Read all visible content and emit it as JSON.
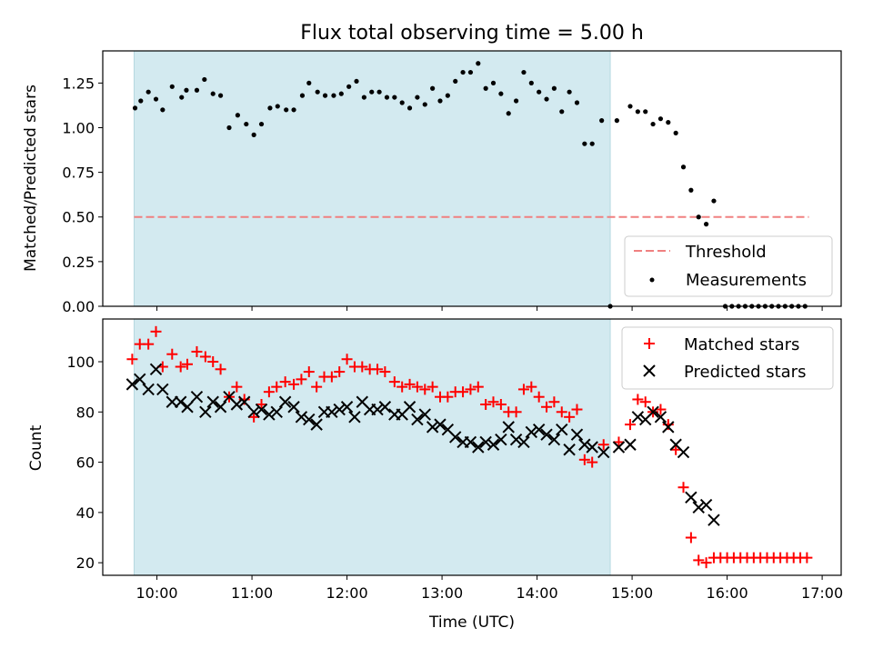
{
  "chart_data": [
    {
      "type": "scatter",
      "title": "Flux total observing time = 5.00 h",
      "xlabel": "",
      "ylabel": "Matched/Predicted stars",
      "ylim": [
        0,
        1.43
      ],
      "xlim": [
        9.43,
        17.2
      ],
      "grid": false,
      "legend_position": "lower right",
      "shaded_interval": {
        "x": [
          9.76,
          14.77
        ],
        "color": "#d3eaf0"
      },
      "yticks": [
        {
          "value": 0.0,
          "label": "0.00"
        },
        {
          "value": 0.25,
          "label": "0.25"
        },
        {
          "value": 0.5,
          "label": "0.50"
        },
        {
          "value": 0.75,
          "label": "0.75"
        },
        {
          "value": 1.0,
          "label": "1.00"
        },
        {
          "value": 1.25,
          "label": "1.25"
        }
      ],
      "threshold": {
        "name": "Threshold",
        "value": 0.5,
        "x": [
          9.76,
          16.86
        ],
        "color": "#f08080",
        "style": "dashed"
      },
      "series": [
        {
          "name": "Measurements",
          "color": "#000000",
          "marker": "dot",
          "points": [
            [
              9.77,
              1.11
            ],
            [
              9.83,
              1.15
            ],
            [
              9.91,
              1.2
            ],
            [
              9.99,
              1.16
            ],
            [
              10.06,
              1.1
            ],
            [
              10.16,
              1.23
            ],
            [
              10.26,
              1.17
            ],
            [
              10.31,
              1.21
            ],
            [
              10.42,
              1.21
            ],
            [
              10.5,
              1.27
            ],
            [
              10.59,
              1.19
            ],
            [
              10.67,
              1.18
            ],
            [
              10.76,
              1.0
            ],
            [
              10.85,
              1.07
            ],
            [
              10.94,
              1.02
            ],
            [
              11.02,
              0.96
            ],
            [
              11.1,
              1.02
            ],
            [
              11.19,
              1.11
            ],
            [
              11.27,
              1.12
            ],
            [
              11.36,
              1.1
            ],
            [
              11.44,
              1.1
            ],
            [
              11.53,
              1.18
            ],
            [
              11.6,
              1.25
            ],
            [
              11.69,
              1.2
            ],
            [
              11.77,
              1.18
            ],
            [
              11.86,
              1.18
            ],
            [
              11.94,
              1.19
            ],
            [
              12.02,
              1.23
            ],
            [
              12.1,
              1.26
            ],
            [
              12.18,
              1.17
            ],
            [
              12.26,
              1.2
            ],
            [
              12.34,
              1.2
            ],
            [
              12.42,
              1.17
            ],
            [
              12.5,
              1.17
            ],
            [
              12.58,
              1.14
            ],
            [
              12.66,
              1.11
            ],
            [
              12.74,
              1.17
            ],
            [
              12.82,
              1.13
            ],
            [
              12.9,
              1.22
            ],
            [
              12.98,
              1.15
            ],
            [
              13.06,
              1.18
            ],
            [
              13.14,
              1.26
            ],
            [
              13.22,
              1.31
            ],
            [
              13.3,
              1.31
            ],
            [
              13.38,
              1.36
            ],
            [
              13.46,
              1.22
            ],
            [
              13.54,
              1.25
            ],
            [
              13.62,
              1.19
            ],
            [
              13.7,
              1.08
            ],
            [
              13.78,
              1.15
            ],
            [
              13.86,
              1.31
            ],
            [
              13.94,
              1.25
            ],
            [
              14.02,
              1.2
            ],
            [
              14.1,
              1.16
            ],
            [
              14.18,
              1.22
            ],
            [
              14.26,
              1.09
            ],
            [
              14.34,
              1.2
            ],
            [
              14.42,
              1.14
            ],
            [
              14.5,
              0.91
            ],
            [
              14.58,
              0.91
            ],
            [
              14.68,
              1.04
            ],
            [
              14.84,
              1.04
            ],
            [
              14.98,
              1.12
            ],
            [
              15.06,
              1.09
            ],
            [
              15.14,
              1.09
            ],
            [
              15.22,
              1.02
            ],
            [
              15.3,
              1.05
            ],
            [
              15.38,
              1.03
            ],
            [
              15.46,
              0.97
            ],
            [
              15.54,
              0.78
            ],
            [
              15.62,
              0.65
            ],
            [
              15.7,
              0.5
            ],
            [
              15.78,
              0.46
            ],
            [
              15.86,
              0.59
            ],
            [
              14.77,
              0.0
            ],
            [
              15.98,
              0.0
            ],
            [
              16.05,
              0.0
            ],
            [
              16.12,
              0.0
            ],
            [
              16.19,
              0.0
            ],
            [
              16.26,
              0.0
            ],
            [
              16.33,
              0.0
            ],
            [
              16.4,
              0.0
            ],
            [
              16.47,
              0.0
            ],
            [
              16.54,
              0.0
            ],
            [
              16.61,
              0.0
            ],
            [
              16.68,
              0.0
            ],
            [
              16.75,
              0.0
            ],
            [
              16.82,
              0.0
            ]
          ]
        }
      ]
    },
    {
      "type": "scatter",
      "title": "",
      "xlabel": "Time (UTC)",
      "ylabel": "Count",
      "ylim": [
        15,
        117
      ],
      "xlim": [
        9.43,
        17.2
      ],
      "grid": false,
      "legend_position": "upper right",
      "shaded_interval": {
        "x": [
          9.76,
          14.77
        ],
        "color": "#d3eaf0"
      },
      "yticks": [
        {
          "value": 20,
          "label": "20"
        },
        {
          "value": 40,
          "label": "40"
        },
        {
          "value": 60,
          "label": "60"
        },
        {
          "value": 80,
          "label": "80"
        },
        {
          "value": 100,
          "label": "100"
        }
      ],
      "xticks": [
        {
          "value": 10,
          "label": "10:00"
        },
        {
          "value": 11,
          "label": "11:00"
        },
        {
          "value": 12,
          "label": "12:00"
        },
        {
          "value": 13,
          "label": "13:00"
        },
        {
          "value": 14,
          "label": "14:00"
        },
        {
          "value": 15,
          "label": "15:00"
        },
        {
          "value": 16,
          "label": "16:00"
        },
        {
          "value": 17,
          "label": "17:00"
        }
      ],
      "series": [
        {
          "name": "Matched stars",
          "color": "#ff0000",
          "marker": "plus",
          "points": [
            [
              9.74,
              101
            ],
            [
              9.82,
              107
            ],
            [
              9.91,
              107
            ],
            [
              9.99,
              112
            ],
            [
              10.06,
              98
            ],
            [
              10.16,
              103
            ],
            [
              10.25,
              98
            ],
            [
              10.32,
              99
            ],
            [
              10.42,
              104
            ],
            [
              10.51,
              102
            ],
            [
              10.59,
              100
            ],
            [
              10.67,
              97
            ],
            [
              10.76,
              86
            ],
            [
              10.84,
              90
            ],
            [
              10.92,
              85
            ],
            [
              11.02,
              78
            ],
            [
              11.1,
              83
            ],
            [
              11.18,
              88
            ],
            [
              11.26,
              90
            ],
            [
              11.35,
              92
            ],
            [
              11.44,
              91
            ],
            [
              11.52,
              93
            ],
            [
              11.6,
              96
            ],
            [
              11.68,
              90
            ],
            [
              11.76,
              94
            ],
            [
              11.84,
              94
            ],
            [
              11.92,
              96
            ],
            [
              12.0,
              101
            ],
            [
              12.08,
              98
            ],
            [
              12.16,
              98
            ],
            [
              12.24,
              97
            ],
            [
              12.32,
              97
            ],
            [
              12.4,
              96
            ],
            [
              12.5,
              92
            ],
            [
              12.58,
              90
            ],
            [
              12.66,
              91
            ],
            [
              12.74,
              90
            ],
            [
              12.82,
              89
            ],
            [
              12.9,
              90
            ],
            [
              12.98,
              86
            ],
            [
              13.06,
              86
            ],
            [
              13.14,
              88
            ],
            [
              13.22,
              88
            ],
            [
              13.3,
              89
            ],
            [
              13.38,
              90
            ],
            [
              13.46,
              83
            ],
            [
              13.54,
              84
            ],
            [
              13.62,
              83
            ],
            [
              13.7,
              80
            ],
            [
              13.78,
              80
            ],
            [
              13.86,
              89
            ],
            [
              13.94,
              90
            ],
            [
              14.02,
              86
            ],
            [
              14.1,
              82
            ],
            [
              14.18,
              84
            ],
            [
              14.26,
              80
            ],
            [
              14.34,
              78
            ],
            [
              14.42,
              81
            ],
            [
              14.5,
              61
            ],
            [
              14.58,
              60
            ],
            [
              14.7,
              67
            ],
            [
              14.86,
              68
            ],
            [
              14.98,
              75
            ],
            [
              15.06,
              85
            ],
            [
              15.14,
              84
            ],
            [
              15.22,
              80
            ],
            [
              15.3,
              81
            ],
            [
              15.38,
              75
            ],
            [
              15.46,
              65
            ],
            [
              15.54,
              50
            ],
            [
              15.62,
              30
            ],
            [
              15.7,
              21
            ],
            [
              15.78,
              20
            ],
            [
              15.86,
              22
            ],
            [
              15.93,
              22
            ],
            [
              16.0,
              22
            ],
            [
              16.07,
              22
            ],
            [
              16.14,
              22
            ],
            [
              16.21,
              22
            ],
            [
              16.28,
              22
            ],
            [
              16.35,
              22
            ],
            [
              16.42,
              22
            ],
            [
              16.49,
              22
            ],
            [
              16.56,
              22
            ],
            [
              16.63,
              22
            ],
            [
              16.7,
              22
            ],
            [
              16.77,
              22
            ],
            [
              16.84,
              22
            ]
          ]
        },
        {
          "name": "Predicted stars",
          "color": "#000000",
          "marker": "x",
          "points": [
            [
              9.74,
              91
            ],
            [
              9.82,
              93
            ],
            [
              9.91,
              89
            ],
            [
              9.99,
              97
            ],
            [
              10.06,
              89
            ],
            [
              10.16,
              84
            ],
            [
              10.25,
              84
            ],
            [
              10.32,
              82
            ],
            [
              10.42,
              86
            ],
            [
              10.51,
              80
            ],
            [
              10.59,
              84
            ],
            [
              10.67,
              82
            ],
            [
              10.76,
              86
            ],
            [
              10.84,
              83
            ],
            [
              10.92,
              84
            ],
            [
              11.02,
              80
            ],
            [
              11.1,
              81
            ],
            [
              11.18,
              79
            ],
            [
              11.26,
              80
            ],
            [
              11.35,
              84
            ],
            [
              11.44,
              82
            ],
            [
              11.52,
              78
            ],
            [
              11.6,
              77
            ],
            [
              11.68,
              75
            ],
            [
              11.76,
              80
            ],
            [
              11.84,
              80
            ],
            [
              11.92,
              81
            ],
            [
              12.0,
              82
            ],
            [
              12.08,
              78
            ],
            [
              12.16,
              84
            ],
            [
              12.24,
              81
            ],
            [
              12.32,
              81
            ],
            [
              12.4,
              82
            ],
            [
              12.5,
              79
            ],
            [
              12.58,
              79
            ],
            [
              12.66,
              82
            ],
            [
              12.74,
              77
            ],
            [
              12.82,
              79
            ],
            [
              12.9,
              74
            ],
            [
              12.98,
              75
            ],
            [
              13.06,
              73
            ],
            [
              13.14,
              70
            ],
            [
              13.22,
              68
            ],
            [
              13.3,
              68
            ],
            [
              13.38,
              66
            ],
            [
              13.46,
              68
            ],
            [
              13.54,
              67
            ],
            [
              13.62,
              69
            ],
            [
              13.7,
              74
            ],
            [
              13.78,
              69
            ],
            [
              13.86,
              68
            ],
            [
              13.94,
              72
            ],
            [
              14.02,
              73
            ],
            [
              14.1,
              71
            ],
            [
              14.18,
              69
            ],
            [
              14.26,
              73
            ],
            [
              14.34,
              65
            ],
            [
              14.42,
              71
            ],
            [
              14.5,
              67
            ],
            [
              14.58,
              66
            ],
            [
              14.7,
              64
            ],
            [
              14.86,
              66
            ],
            [
              14.98,
              67
            ],
            [
              15.06,
              78
            ],
            [
              15.14,
              77
            ],
            [
              15.22,
              80
            ],
            [
              15.3,
              78
            ],
            [
              15.38,
              74
            ],
            [
              15.46,
              67
            ],
            [
              15.54,
              64
            ],
            [
              15.62,
              46
            ],
            [
              15.7,
              42
            ],
            [
              15.78,
              43
            ],
            [
              15.86,
              37
            ]
          ]
        }
      ]
    }
  ]
}
